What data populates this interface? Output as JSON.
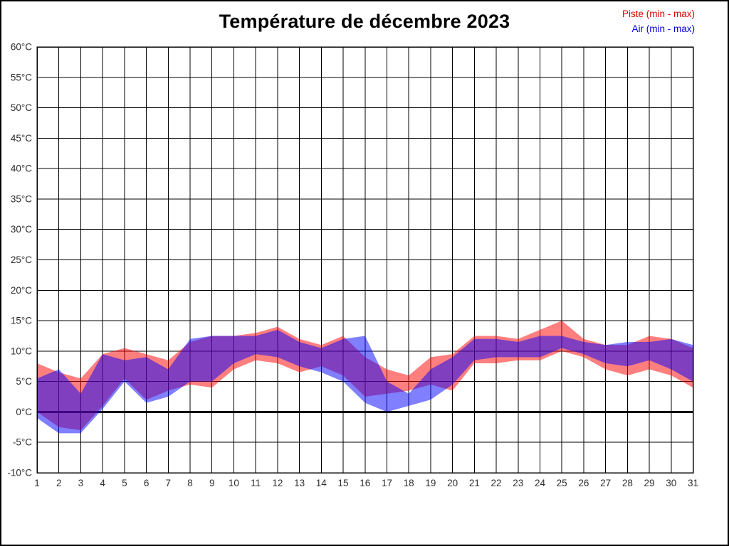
{
  "title": "Température de décembre 2023",
  "legend": {
    "piste": "Piste (min - max)",
    "air": "Air (min - max)"
  },
  "colors": {
    "piste_text": "#e00000",
    "air_text": "#0000e0",
    "piste_fill": "rgba(255,0,0,0.5)",
    "air_fill": "rgba(0,0,255,0.5)",
    "grid": "#000000",
    "tick_text": "#2e2e2e"
  },
  "chart_data": {
    "type": "area",
    "subtype": "min-max-bands",
    "title": "Température de décembre 2023",
    "xlabel": "",
    "ylabel": "",
    "x": [
      1,
      2,
      3,
      4,
      5,
      6,
      7,
      8,
      9,
      10,
      11,
      12,
      13,
      14,
      15,
      16,
      17,
      18,
      19,
      20,
      21,
      22,
      23,
      24,
      25,
      26,
      27,
      28,
      29,
      30,
      31
    ],
    "ylim": [
      -10,
      60
    ],
    "ytick_step": 5,
    "ytick_suffix": "°C",
    "grid": true,
    "legend_position": "top-right",
    "zero_line": true,
    "series": [
      {
        "id": "piste",
        "name": "Piste (min - max)",
        "min": [
          0,
          -2.5,
          -3,
          1,
          5.5,
          2,
          3.5,
          4.5,
          4,
          7,
          8.5,
          8,
          6.5,
          7.5,
          6,
          2.5,
          3,
          3.5,
          4.5,
          3.5,
          8,
          8,
          8.5,
          8.5,
          10,
          9,
          7,
          6,
          7,
          6,
          4
        ],
        "max": [
          8,
          6.5,
          5.5,
          9.5,
          10.5,
          9.5,
          8.5,
          11.5,
          12.5,
          12.5,
          13,
          14,
          12,
          11,
          12.5,
          9,
          7,
          6,
          9,
          9.5,
          12.5,
          12.5,
          12,
          13.5,
          15,
          12,
          11,
          11,
          12.5,
          12,
          10.5
        ]
      },
      {
        "id": "air",
        "name": "Air (min - max)",
        "min": [
          -1,
          -3.5,
          -3.5,
          0.5,
          5,
          1.5,
          2.5,
          5,
          5,
          8,
          9.5,
          9,
          7.5,
          6.5,
          5,
          1.5,
          0,
          1,
          2,
          4.5,
          8.5,
          9,
          9,
          9,
          10.5,
          9.5,
          8,
          7.5,
          8.5,
          7,
          5
        ],
        "max": [
          5.5,
          7,
          3,
          9.5,
          8.5,
          9,
          7,
          12,
          12.5,
          12.5,
          12.5,
          13.5,
          11.5,
          10.5,
          12,
          12.5,
          5,
          3,
          7,
          9,
          12,
          12,
          11.5,
          12.5,
          12.5,
          11.5,
          11,
          11.5,
          11.5,
          12,
          11
        ]
      }
    ]
  }
}
